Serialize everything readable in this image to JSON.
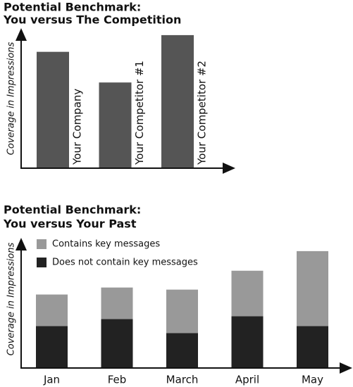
{
  "chart_data": [
    {
      "type": "bar",
      "title": "Potential Benchmark:",
      "subtitle": "You versus The Competition",
      "y_label": "Coverage in Impressions",
      "categories": [
        "Your Company",
        "Your Competitor #1",
        "Your Competitor #2"
      ],
      "values": [
        166,
        122,
        190
      ],
      "color": "#555555",
      "ylim": [
        0,
        200
      ]
    },
    {
      "type": "stacked_bar",
      "title": "Potential Benchmark:",
      "subtitle": "You versus Your Past",
      "y_label": "Coverage in Impressions",
      "legend": "top-left",
      "categories": [
        "Jan",
        "Feb",
        "March",
        "April",
        "May"
      ],
      "series": [
        {
          "name": "Does not contain key messages",
          "color": "#222222",
          "values": [
            59,
            69,
            49,
            73,
            59
          ]
        },
        {
          "name": "Contains key messages",
          "color": "#999999",
          "values": [
            45,
            45,
            62,
            65,
            107
          ]
        }
      ],
      "ylim": [
        0,
        185
      ]
    }
  ]
}
